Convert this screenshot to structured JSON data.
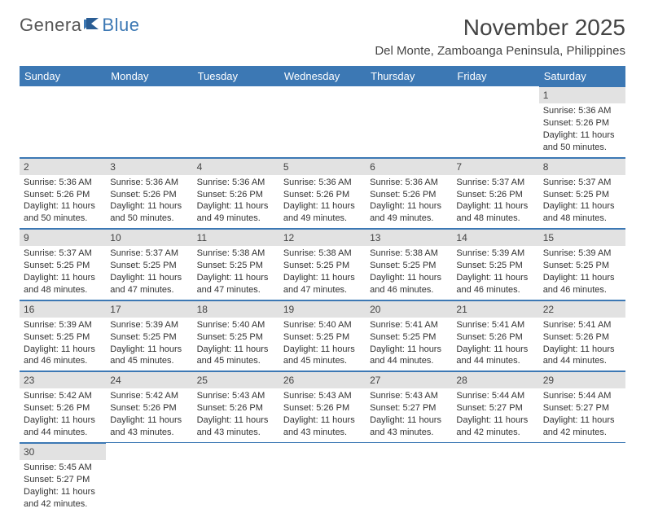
{
  "logo": {
    "part1": "Genera",
    "part2": "Blue"
  },
  "title": "November 2025",
  "subtitle": "Del Monte, Zamboanga Peninsula, Philippines",
  "colors": {
    "header_bg": "#3c78b4",
    "header_text": "#ffffff",
    "daynum_bg": "#e2e2e2",
    "border": "#3c78b4",
    "text": "#333333",
    "page_bg": "#ffffff"
  },
  "weekdays": [
    "Sunday",
    "Monday",
    "Tuesday",
    "Wednesday",
    "Thursday",
    "Friday",
    "Saturday"
  ],
  "weeks": [
    [
      null,
      null,
      null,
      null,
      null,
      null,
      {
        "n": "1",
        "sr": "5:36 AM",
        "ss": "5:26 PM",
        "dl": "11 hours and 50 minutes."
      }
    ],
    [
      {
        "n": "2",
        "sr": "5:36 AM",
        "ss": "5:26 PM",
        "dl": "11 hours and 50 minutes."
      },
      {
        "n": "3",
        "sr": "5:36 AM",
        "ss": "5:26 PM",
        "dl": "11 hours and 50 minutes."
      },
      {
        "n": "4",
        "sr": "5:36 AM",
        "ss": "5:26 PM",
        "dl": "11 hours and 49 minutes."
      },
      {
        "n": "5",
        "sr": "5:36 AM",
        "ss": "5:26 PM",
        "dl": "11 hours and 49 minutes."
      },
      {
        "n": "6",
        "sr": "5:36 AM",
        "ss": "5:26 PM",
        "dl": "11 hours and 49 minutes."
      },
      {
        "n": "7",
        "sr": "5:37 AM",
        "ss": "5:26 PM",
        "dl": "11 hours and 48 minutes."
      },
      {
        "n": "8",
        "sr": "5:37 AM",
        "ss": "5:25 PM",
        "dl": "11 hours and 48 minutes."
      }
    ],
    [
      {
        "n": "9",
        "sr": "5:37 AM",
        "ss": "5:25 PM",
        "dl": "11 hours and 48 minutes."
      },
      {
        "n": "10",
        "sr": "5:37 AM",
        "ss": "5:25 PM",
        "dl": "11 hours and 47 minutes."
      },
      {
        "n": "11",
        "sr": "5:38 AM",
        "ss": "5:25 PM",
        "dl": "11 hours and 47 minutes."
      },
      {
        "n": "12",
        "sr": "5:38 AM",
        "ss": "5:25 PM",
        "dl": "11 hours and 47 minutes."
      },
      {
        "n": "13",
        "sr": "5:38 AM",
        "ss": "5:25 PM",
        "dl": "11 hours and 46 minutes."
      },
      {
        "n": "14",
        "sr": "5:39 AM",
        "ss": "5:25 PM",
        "dl": "11 hours and 46 minutes."
      },
      {
        "n": "15",
        "sr": "5:39 AM",
        "ss": "5:25 PM",
        "dl": "11 hours and 46 minutes."
      }
    ],
    [
      {
        "n": "16",
        "sr": "5:39 AM",
        "ss": "5:25 PM",
        "dl": "11 hours and 46 minutes."
      },
      {
        "n": "17",
        "sr": "5:39 AM",
        "ss": "5:25 PM",
        "dl": "11 hours and 45 minutes."
      },
      {
        "n": "18",
        "sr": "5:40 AM",
        "ss": "5:25 PM",
        "dl": "11 hours and 45 minutes."
      },
      {
        "n": "19",
        "sr": "5:40 AM",
        "ss": "5:25 PM",
        "dl": "11 hours and 45 minutes."
      },
      {
        "n": "20",
        "sr": "5:41 AM",
        "ss": "5:25 PM",
        "dl": "11 hours and 44 minutes."
      },
      {
        "n": "21",
        "sr": "5:41 AM",
        "ss": "5:26 PM",
        "dl": "11 hours and 44 minutes."
      },
      {
        "n": "22",
        "sr": "5:41 AM",
        "ss": "5:26 PM",
        "dl": "11 hours and 44 minutes."
      }
    ],
    [
      {
        "n": "23",
        "sr": "5:42 AM",
        "ss": "5:26 PM",
        "dl": "11 hours and 44 minutes."
      },
      {
        "n": "24",
        "sr": "5:42 AM",
        "ss": "5:26 PM",
        "dl": "11 hours and 43 minutes."
      },
      {
        "n": "25",
        "sr": "5:43 AM",
        "ss": "5:26 PM",
        "dl": "11 hours and 43 minutes."
      },
      {
        "n": "26",
        "sr": "5:43 AM",
        "ss": "5:26 PM",
        "dl": "11 hours and 43 minutes."
      },
      {
        "n": "27",
        "sr": "5:43 AM",
        "ss": "5:27 PM",
        "dl": "11 hours and 43 minutes."
      },
      {
        "n": "28",
        "sr": "5:44 AM",
        "ss": "5:27 PM",
        "dl": "11 hours and 42 minutes."
      },
      {
        "n": "29",
        "sr": "5:44 AM",
        "ss": "5:27 PM",
        "dl": "11 hours and 42 minutes."
      }
    ],
    [
      {
        "n": "30",
        "sr": "5:45 AM",
        "ss": "5:27 PM",
        "dl": "11 hours and 42 minutes."
      },
      null,
      null,
      null,
      null,
      null,
      null
    ]
  ],
  "labels": {
    "sunrise": "Sunrise: ",
    "sunset": "Sunset: ",
    "daylight": "Daylight: "
  }
}
